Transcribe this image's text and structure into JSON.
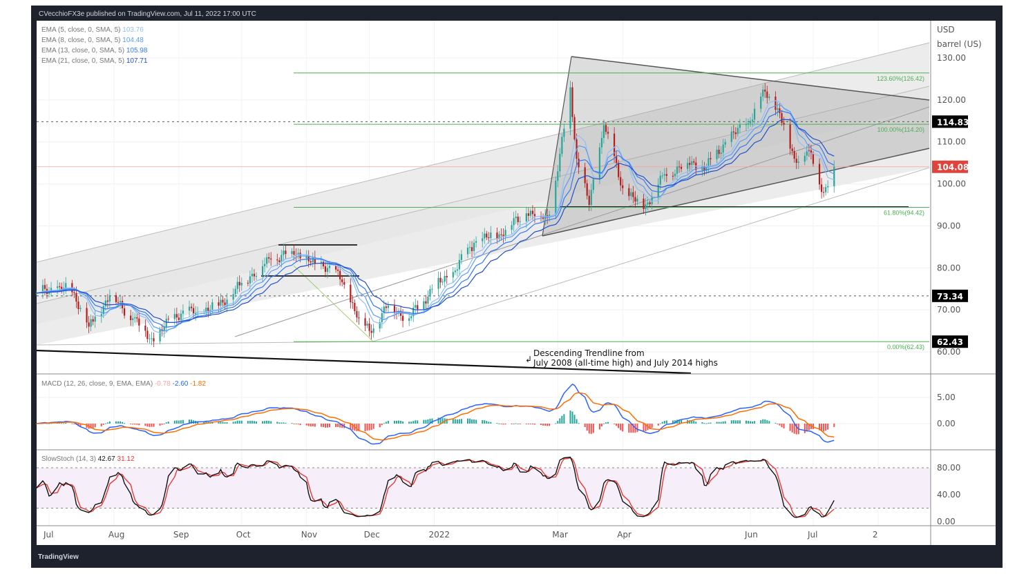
{
  "header": {
    "published": "CVecchioFX3e published on TradingView.com, Jul 11, 2022 17:00 UTC"
  },
  "footer": {
    "logo": "TradingView"
  },
  "legend": {
    "ema": [
      {
        "label": "EMA (5, close, 0, SMA, 5)",
        "value": "103.76",
        "color": "#90bff9"
      },
      {
        "label": "EMA (8, close, 0, SMA, 5)",
        "value": "104.48",
        "color": "#5b9cf6"
      },
      {
        "label": "EMA (13, close, 0, SMA, 5)",
        "value": "105.98",
        "color": "#3179f5"
      },
      {
        "label": "EMA (21, close, 0, SMA, 5)",
        "value": "107.71",
        "color": "#1e4fc9"
      }
    ],
    "macd": {
      "label": "MACD (12, 26, close, 9, EMA, EMA)",
      "hist": "-0.78",
      "macd": "-2.60",
      "signal": "-1.82"
    },
    "stoch": {
      "label": "SlowStoch (14, 3)",
      "k": "42.67",
      "d": "31.12"
    }
  },
  "colors": {
    "up": "#26a69a",
    "down": "#ef5350",
    "candle_up": "#26a69a",
    "candle_down": "#b71c1c",
    "macd": "#2962ff",
    "signal": "#ff6d00",
    "stoch_k": "#111111",
    "stoch_d": "#e53935",
    "fib": "#4caf50",
    "frame": "#1e222d"
  },
  "annotations": {
    "trendline_line1": "Descending Trendline from",
    "trendline_line2": "July 2008 (all-time high) and July 2014 highs",
    "fib_levels": [
      {
        "label": "123.60%(126.42)",
        "price": 126.42
      },
      {
        "label": "100.00%(114.20)",
        "price": 114.2
      },
      {
        "label": "61.80%(94.42)",
        "price": 94.42
      },
      {
        "label": "0.00%(62.43)",
        "price": 62.43
      }
    ],
    "dotted_levels": [
      114.83,
      73.34
    ]
  },
  "chart_data": [
    {
      "type": "candlestick",
      "title": "",
      "currency": "USD",
      "unit": "barrel (US)",
      "ylim": [
        57,
        134
      ],
      "yticks": [
        "130.00",
        "120.00",
        "110.00",
        "100.00",
        "90.00",
        "80.00",
        "70.00",
        "60.00"
      ],
      "price_labels": [
        {
          "value": "114.83",
          "bg": "#000000"
        },
        {
          "value": "104.08",
          "bg": "#e0433b"
        },
        {
          "value": "73.34",
          "bg": "#000000"
        },
        {
          "value": "62.43",
          "bg": "#000000"
        }
      ],
      "xticks": [
        "Jul",
        "Aug",
        "Sep",
        "Oct",
        "Nov",
        "Dec",
        "2022",
        "Mar",
        "Apr",
        "Jun",
        "Jul",
        "2"
      ],
      "close_path": [
        [
          "2021-06-25",
          74
        ],
        [
          "2021-07-06",
          75.5
        ],
        [
          "2021-07-13",
          74
        ],
        [
          "2021-07-20",
          66
        ],
        [
          "2021-07-30",
          73.5
        ],
        [
          "2021-08-10",
          68
        ],
        [
          "2021-08-20",
          62.5
        ],
        [
          "2021-08-30",
          69
        ],
        [
          "2021-09-10",
          69.5
        ],
        [
          "2021-09-20",
          71
        ],
        [
          "2021-09-28",
          75
        ],
        [
          "2021-10-05",
          78
        ],
        [
          "2021-10-15",
          82
        ],
        [
          "2021-10-25",
          84
        ],
        [
          "2021-11-05",
          81
        ],
        [
          "2021-11-12",
          80.5
        ],
        [
          "2021-11-19",
          76
        ],
        [
          "2021-11-26",
          68
        ],
        [
          "2021-12-01",
          65
        ],
        [
          "2021-12-10",
          71
        ],
        [
          "2021-12-20",
          68
        ],
        [
          "2021-12-31",
          75
        ],
        [
          "2022-01-10",
          79
        ],
        [
          "2022-01-20",
          86
        ],
        [
          "2022-02-01",
          88
        ],
        [
          "2022-02-14",
          93
        ],
        [
          "2022-02-24",
          92
        ],
        [
          "2022-03-01",
          103
        ],
        [
          "2022-03-07",
          123
        ],
        [
          "2022-03-10",
          106
        ],
        [
          "2022-03-16",
          95
        ],
        [
          "2022-03-23",
          114
        ],
        [
          "2022-04-01",
          99
        ],
        [
          "2022-04-11",
          94
        ],
        [
          "2022-04-20",
          102
        ],
        [
          "2022-05-02",
          105
        ],
        [
          "2022-05-11",
          104
        ],
        [
          "2022-05-20",
          110
        ],
        [
          "2022-06-01",
          115
        ],
        [
          "2022-06-08",
          122
        ],
        [
          "2022-06-14",
          118
        ],
        [
          "2022-06-22",
          106
        ],
        [
          "2022-06-29",
          108
        ],
        [
          "2022-07-06",
          98
        ],
        [
          "2022-07-11",
          104.08
        ]
      ]
    },
    {
      "type": "line",
      "title": "MACD",
      "ylim": [
        -5,
        10
      ],
      "yticks": [
        "5.00",
        "0.00"
      ]
    },
    {
      "type": "line",
      "title": "SlowStoch",
      "ylim": [
        0,
        100
      ],
      "yticks": [
        "80.00",
        "40.00",
        "0.00"
      ],
      "bands": [
        20,
        80
      ]
    }
  ]
}
